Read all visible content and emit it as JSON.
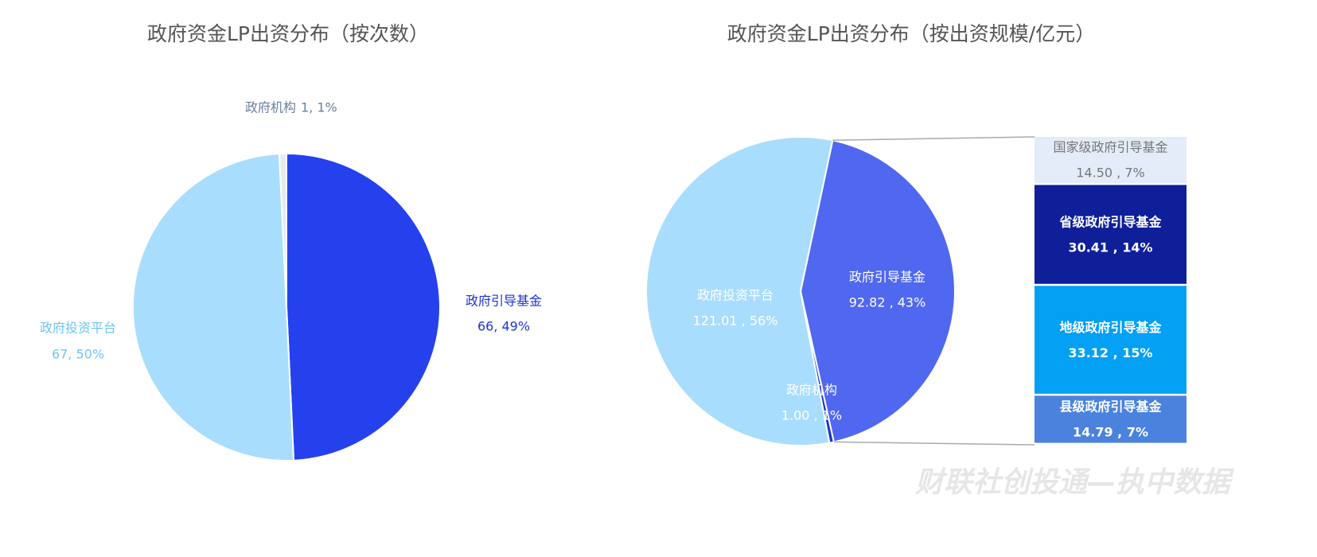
{
  "chart_data": [
    {
      "type": "pie",
      "title": "政府资金LP出资分布（按次数）",
      "categories": [
        "政府引导基金",
        "政府投资平台",
        "政府机构"
      ],
      "values": [
        66,
        67,
        1
      ],
      "value_labels": [
        "66, 49%",
        "67, 50%",
        "1, 1%"
      ],
      "colors": [
        "#2541ee",
        "#a9ddfd",
        "#e4ebf4"
      ]
    },
    {
      "type": "pie",
      "title": "政府资金LP出资分布（按出资规模/亿元）",
      "categories": [
        "政府引导基金",
        "政府机构",
        "政府投资平台"
      ],
      "values": [
        92.82,
        1.0,
        121.01
      ],
      "value_labels": [
        "92.82 , 43%",
        "1.00 , 1%",
        "121.01 , 56%"
      ],
      "colors": [
        "#5068f0",
        "#2035c8",
        "#a9ddfd"
      ],
      "breakdown": {
        "categories": [
          "国家级政府引导基金",
          "省级政府引导基金",
          "地级政府引导基金",
          "县级政府引导基金"
        ],
        "values": [
          14.5,
          30.41,
          33.12,
          14.79
        ],
        "value_labels": [
          "14.50 , 7%",
          "30.41 , 14%",
          "33.12 , 15%",
          "14.79 , 7%"
        ],
        "colors": [
          "#e3ecf8",
          "#0f1f9a",
          "#03a0f4",
          "#4a82de"
        ]
      }
    }
  ],
  "watermark": "财联社创投通—执中数据"
}
